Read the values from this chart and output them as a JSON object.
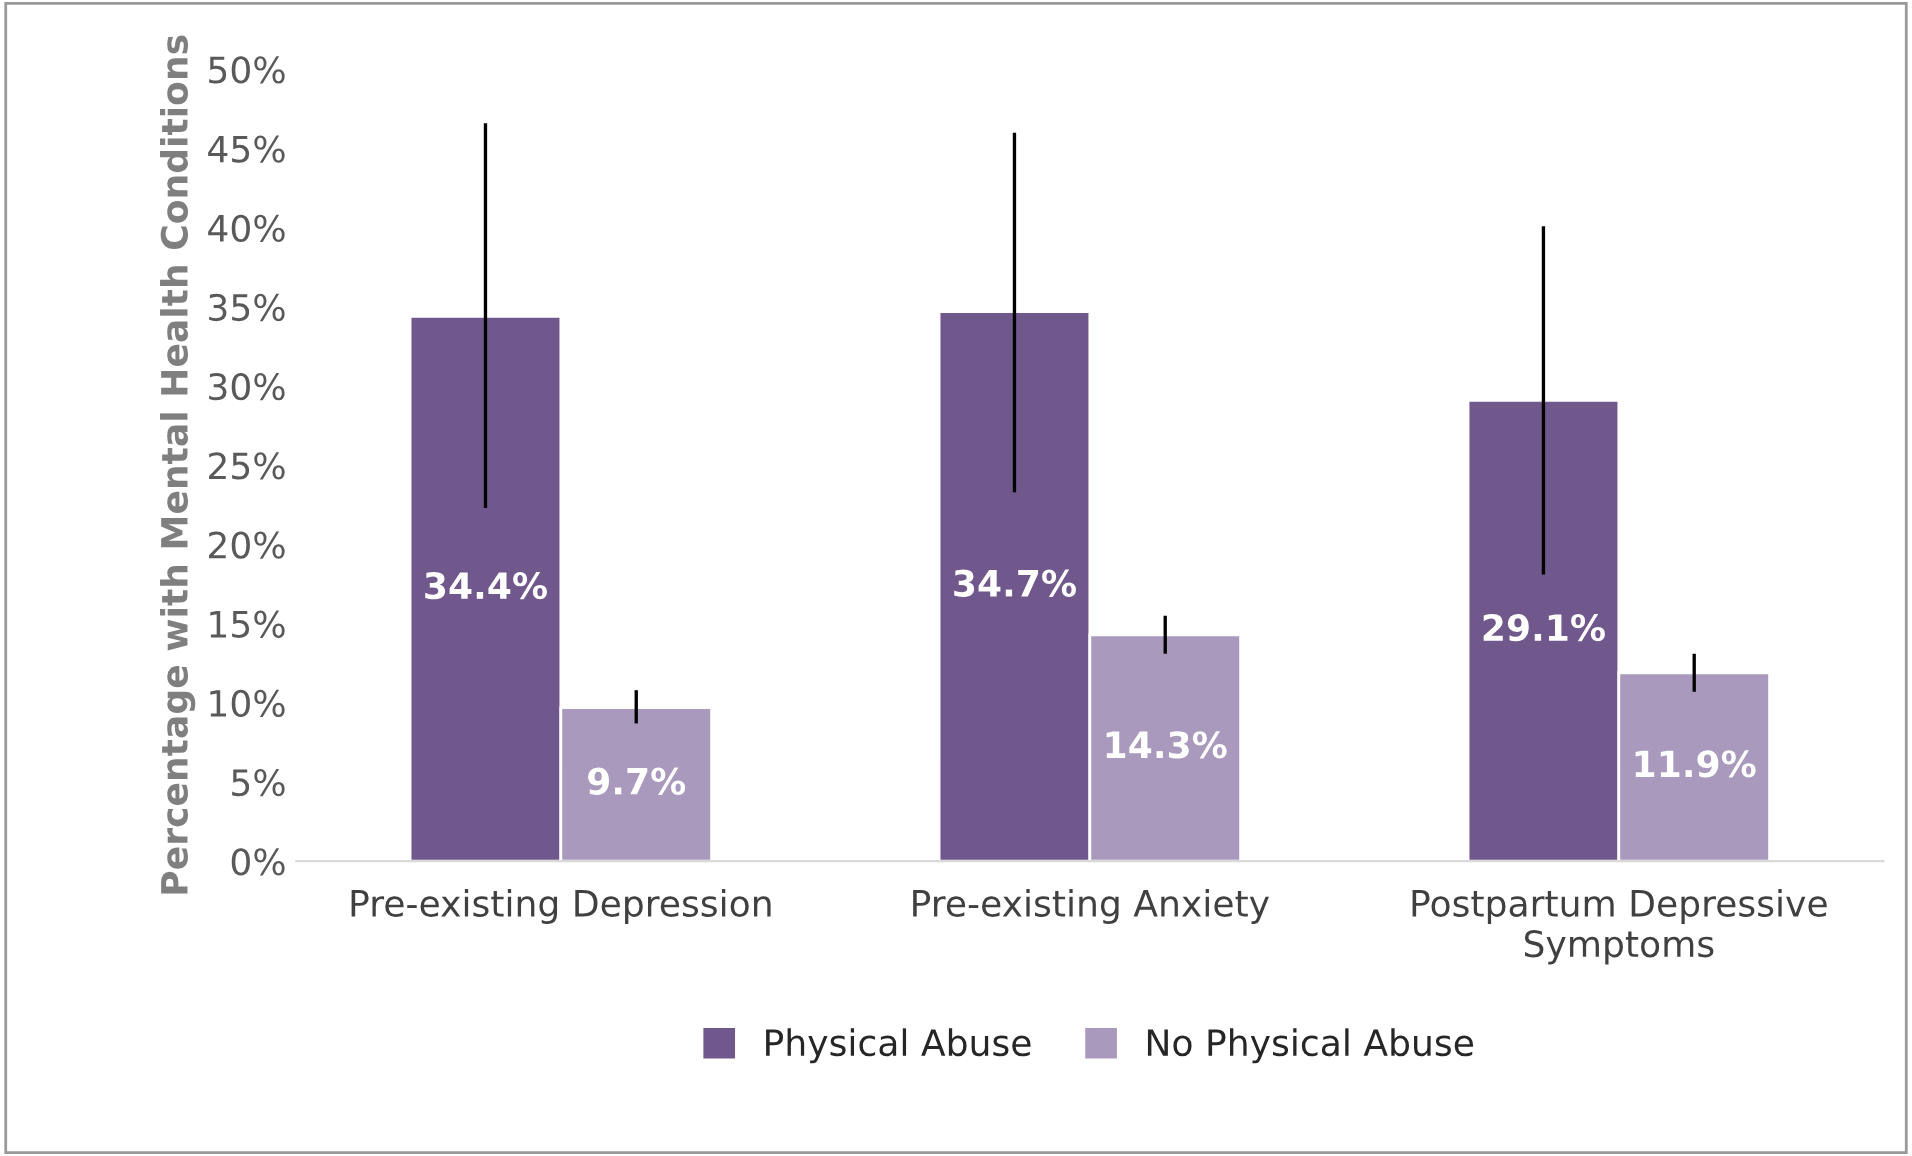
{
  "chart_data": {
    "type": "bar",
    "ylabel": "Percentage with Mental Health Conditions",
    "categories": [
      "Pre-existing Depression",
      "Pre-existing Anxiety",
      "Postpartum Depressive\nSymptoms"
    ],
    "series": [
      {
        "name": "Physical Abuse",
        "color": "#70578c",
        "values": [
          34.4,
          34.7,
          29.1
        ],
        "errors": [
          [
            22.3,
            46.6
          ],
          [
            23.3,
            46.0
          ],
          [
            18.1,
            40.1
          ]
        ],
        "value_labels": [
          "34.4%",
          "34.7%",
          "29.1%"
        ]
      },
      {
        "name": "No Physical Abuse",
        "color": "#a899bd",
        "values": [
          9.7,
          14.3,
          11.9
        ],
        "errors": [
          [
            8.7,
            10.8
          ],
          [
            13.1,
            15.5
          ],
          [
            10.7,
            13.1
          ]
        ],
        "value_labels": [
          "9.7%",
          "14.3%",
          "11.9%"
        ]
      }
    ],
    "ylim": [
      0,
      50
    ],
    "yticks": [
      {
        "value": 0,
        "label": "0%"
      },
      {
        "value": 5,
        "label": "5%"
      },
      {
        "value": 10,
        "label": "10%"
      },
      {
        "value": 15,
        "label": "15%"
      },
      {
        "value": 20,
        "label": "20%"
      },
      {
        "value": 25,
        "label": "25%"
      },
      {
        "value": 30,
        "label": "30%"
      },
      {
        "value": 35,
        "label": "35%"
      },
      {
        "value": 40,
        "label": "40%"
      },
      {
        "value": 45,
        "label": "45%"
      },
      {
        "value": 50,
        "label": "50%"
      }
    ],
    "legend": "bottom",
    "grid": false
  }
}
